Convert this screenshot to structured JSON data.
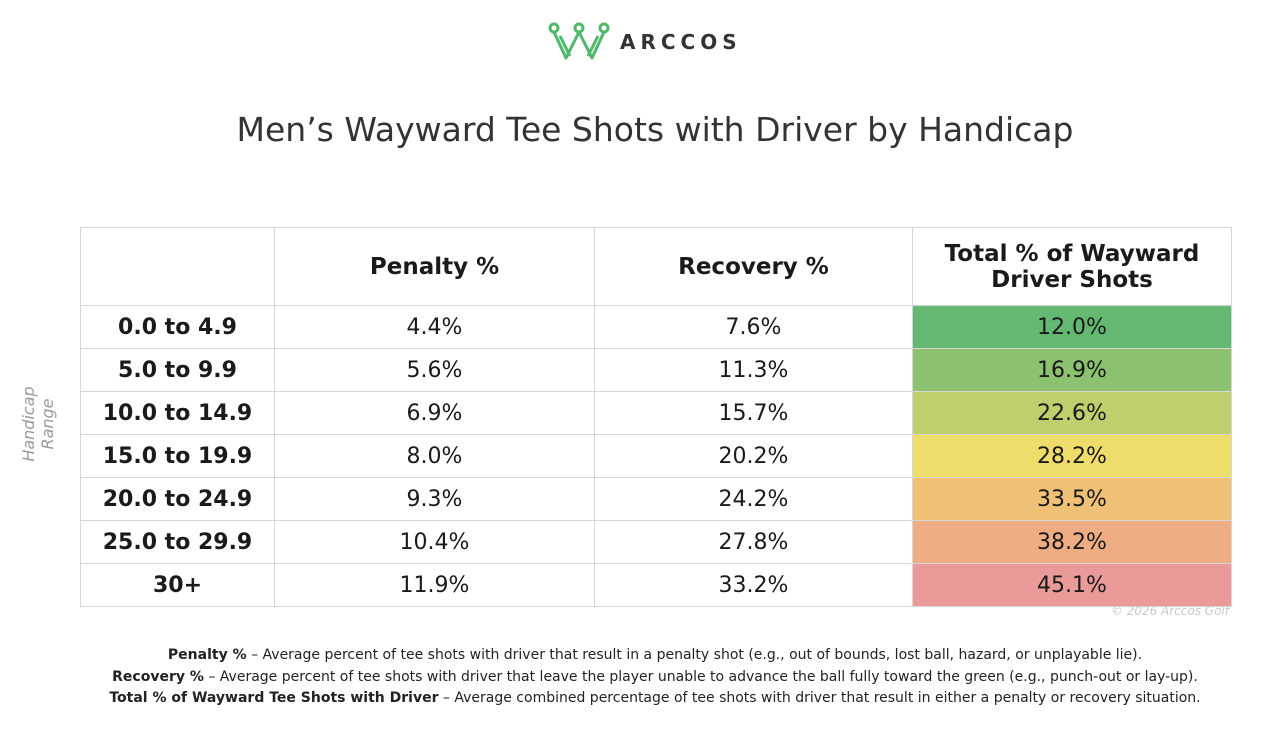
{
  "header": {
    "brand": "ARCCOS",
    "title": "Men’s Wayward Tee Shots with Driver by Handicap"
  },
  "axis_label": "Handicap Range",
  "table": {
    "columns": [
      "Penalty %",
      "Recovery %",
      "Total % of Wayward Driver Shots"
    ],
    "rows": [
      [
        "0.0 to 4.9",
        "4.4%",
        "7.6%",
        "12.0%"
      ],
      [
        "5.0 to 9.9",
        "5.6%",
        "11.3%",
        "16.9%"
      ],
      [
        "10.0 to 14.9",
        "6.9%",
        "15.7%",
        "22.6%"
      ],
      [
        "15.0 to 19.9",
        "8.0%",
        "20.2%",
        "28.2%"
      ],
      [
        "20.0 to 24.9",
        "9.3%",
        "24.2%",
        "33.5%"
      ],
      [
        "25.0 to 29.9",
        "10.4%",
        "27.8%",
        "38.2%"
      ],
      [
        "30+",
        "11.9%",
        "33.2%",
        "45.1%"
      ]
    ]
  },
  "copyright": "© 2026 Arccos Golf",
  "notes": [
    {
      "term": "Penalty %",
      "text": " – Average percent of tee shots with driver that result in a penalty shot (e.g., out of bounds, lost ball, hazard, or unplayable lie)."
    },
    {
      "term": "Recovery %",
      "text": " – Average percent of tee shots with driver that leave the player unable to advance the ball fully toward the green (e.g., punch-out or lay-up)."
    },
    {
      "term": "Total % of Wayward Tee Shots with Driver",
      "text": " – Average combined percentage of tee shots with driver that result in either a penalty or recovery situation."
    }
  ]
}
